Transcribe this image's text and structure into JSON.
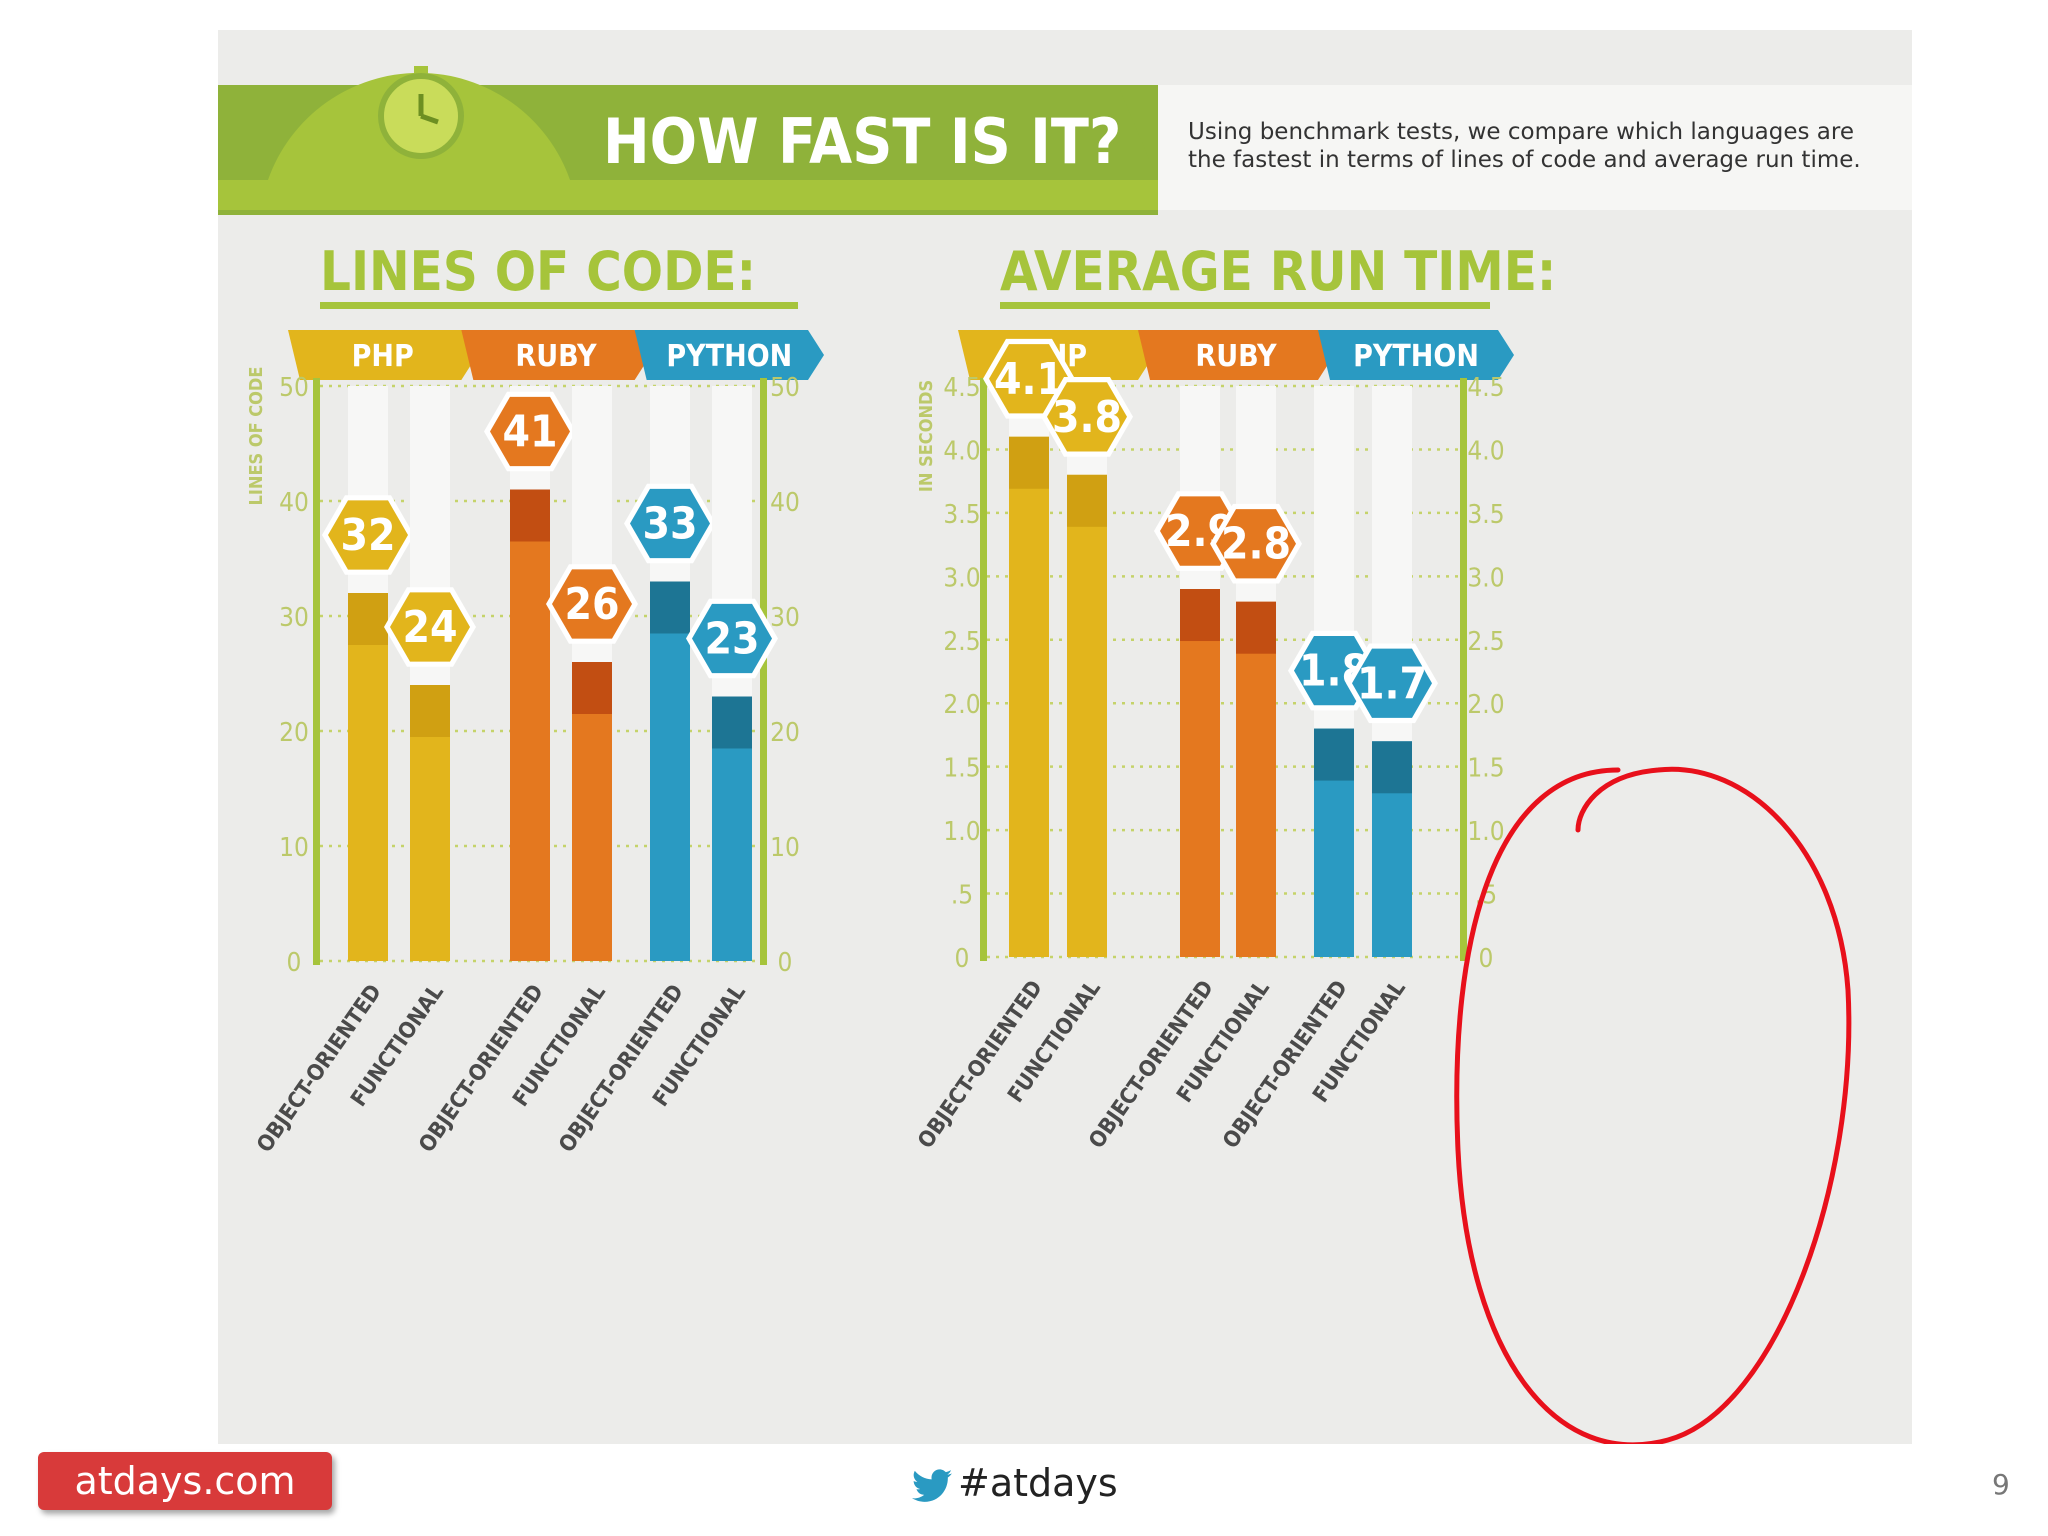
{
  "header": {
    "title": "HOW FAST IS IT?",
    "description": "Using benchmark tests, we compare which languages are the fastest in terms of lines of code and average run time."
  },
  "footer": {
    "brand": "atdays.com",
    "hashtag": "#atdays",
    "page_number": "9"
  },
  "colors": {
    "php": "#e2b51c",
    "ruby": "#e4781f",
    "python": "#2a9ac2",
    "accent_green": "#a6c43b",
    "axis_label": "#bcc96a",
    "annotation_circle": "#e8101b",
    "brand_pill": "#d83a3a"
  },
  "icons": [
    "stopwatch-icon",
    "twitter-bird-icon"
  ],
  "chart_data": [
    {
      "type": "bar",
      "title": "LINES OF CODE:",
      "ylabel": "LINES OF CODE",
      "ylim": [
        0,
        50
      ],
      "yticks": [
        "0",
        "10",
        "20",
        "30",
        "40",
        "50"
      ],
      "groups": [
        "PHP",
        "RUBY",
        "PYTHON"
      ],
      "categories": [
        "OBJECT-ORIENTED",
        "FUNCTIONAL",
        "OBJECT-ORIENTED",
        "FUNCTIONAL",
        "OBJECT-ORIENTED",
        "FUNCTIONAL"
      ],
      "values": [
        32,
        24,
        41,
        26,
        33,
        23
      ],
      "value_labels": [
        "32",
        "24",
        "41",
        "26",
        "33",
        "23"
      ],
      "grid": true
    },
    {
      "type": "bar",
      "title": "AVERAGE RUN TIME:",
      "ylabel": "IN SECONDS",
      "ylim": [
        0,
        4.5
      ],
      "yticks": [
        "0",
        ".5",
        "1.0",
        "1.5",
        "2.0",
        "2.5",
        "3.0",
        "3.5",
        "4.0",
        "4.5"
      ],
      "groups": [
        "PHP",
        "RUBY",
        "PYTHON"
      ],
      "categories": [
        "OBJECT-ORIENTED",
        "FUNCTIONAL",
        "OBJECT-ORIENTED",
        "FUNCTIONAL",
        "OBJECT-ORIENTED",
        "FUNCTIONAL"
      ],
      "values": [
        4.1,
        3.8,
        2.9,
        2.8,
        1.8,
        1.7
      ],
      "value_labels": [
        "4.1",
        "3.8",
        "2.9",
        "2.8",
        "1.8",
        "1.7"
      ],
      "grid": true
    }
  ]
}
